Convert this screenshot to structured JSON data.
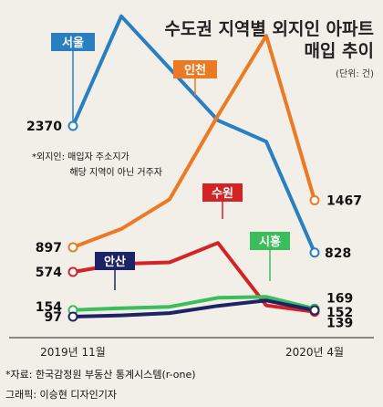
{
  "chart_data": {
    "type": "line",
    "title_line1": "수도권 지역별 외지인 아파트",
    "title_line2": "매입 추이",
    "unit": "(단위: 건)",
    "x_start_label": "2019년 11월",
    "x_end_label": "2020년 4월",
    "ylim": [
      0,
      4000
    ],
    "series": [
      {
        "name": "서울",
        "color": "#2a7fc0",
        "values": [
          2370,
          3950,
          3200,
          2450,
          2180,
          828
        ],
        "start_label": "2370",
        "end_label": "828"
      },
      {
        "name": "인천",
        "color": "#ec7a24",
        "values": [
          897,
          1120,
          1480,
          2520,
          3670,
          1467
        ],
        "start_label": "897",
        "end_label": "1467"
      },
      {
        "name": "수원",
        "color": "#d42325",
        "values": [
          574,
          680,
          700,
          950,
          205,
          139
        ],
        "start_label": "574",
        "end_label": "139"
      },
      {
        "name": "시흥",
        "color": "#3cbd5c",
        "values": [
          154,
          175,
          190,
          290,
          300,
          169
        ],
        "start_label": "154",
        "end_label": "169"
      },
      {
        "name": "안산",
        "color": "#1d2466",
        "values": [
          97,
          108,
          128,
          200,
          260,
          152
        ],
        "start_label": "97",
        "end_label": "152"
      }
    ],
    "note_line1": "*외지인: 매입자 주소지가",
    "note_line2": "해당 지역이 아닌 거주자"
  },
  "footer": {
    "source": "*자료: 한국감정원 부동산 통계시스템(r-one)",
    "credit": "그래픽: 이승현 디자인기자"
  }
}
